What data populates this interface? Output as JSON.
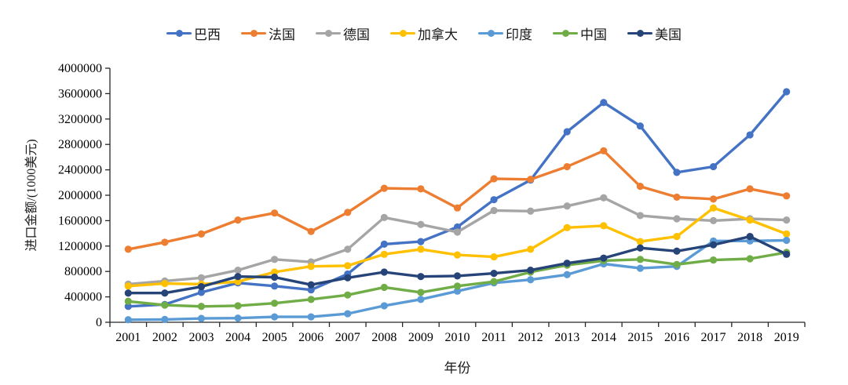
{
  "chart_data": {
    "type": "line",
    "title": "",
    "xlabel": "年份",
    "ylabel": "进口金额/(1000美元)",
    "x": [
      2001,
      2002,
      2003,
      2004,
      2005,
      2006,
      2007,
      2008,
      2009,
      2010,
      2011,
      2012,
      2013,
      2014,
      2015,
      2016,
      2017,
      2018,
      2019
    ],
    "ylim": [
      0,
      4000000
    ],
    "ytick_step": 400000,
    "y_ticks": [
      "0",
      "400000",
      "800000",
      "1200000",
      "1600000",
      "2000000",
      "2400000",
      "2800000",
      "3200000",
      "3600000",
      "4000000"
    ],
    "grid": false,
    "legend_position": "top",
    "series": [
      {
        "name": "巴西",
        "color": "#4472C4",
        "values": [
          250000,
          280000,
          470000,
          620000,
          570000,
          510000,
          760000,
          1230000,
          1270000,
          1500000,
          1930000,
          2240000,
          3000000,
          3460000,
          3090000,
          2360000,
          2450000,
          2950000,
          3630000
        ]
      },
      {
        "name": "法国",
        "color": "#ED7D31",
        "values": [
          1150000,
          1260000,
          1390000,
          1610000,
          1720000,
          1430000,
          1730000,
          2110000,
          2100000,
          1800000,
          2260000,
          2250000,
          2450000,
          2700000,
          2140000,
          1970000,
          1940000,
          2100000,
          1990000
        ]
      },
      {
        "name": "德国",
        "color": "#A5A5A5",
        "values": [
          600000,
          650000,
          700000,
          820000,
          990000,
          950000,
          1150000,
          1650000,
          1540000,
          1420000,
          1760000,
          1750000,
          1830000,
          1960000,
          1680000,
          1630000,
          1600000,
          1630000,
          1610000
        ]
      },
      {
        "name": "加拿大",
        "color": "#FFC000",
        "values": [
          570000,
          610000,
          600000,
          640000,
          790000,
          880000,
          890000,
          1070000,
          1150000,
          1060000,
          1030000,
          1150000,
          1490000,
          1520000,
          1270000,
          1350000,
          1800000,
          1610000,
          1390000
        ]
      },
      {
        "name": "印度",
        "color": "#5B9BD5",
        "values": [
          40000,
          45000,
          60000,
          65000,
          85000,
          85000,
          135000,
          260000,
          360000,
          490000,
          620000,
          670000,
          750000,
          920000,
          850000,
          880000,
          1280000,
          1280000,
          1290000
        ]
      },
      {
        "name": "中国",
        "color": "#70AD47",
        "values": [
          330000,
          270000,
          250000,
          260000,
          300000,
          360000,
          430000,
          550000,
          470000,
          570000,
          640000,
          790000,
          900000,
          970000,
          990000,
          910000,
          980000,
          1000000,
          1100000
        ]
      },
      {
        "name": "美国",
        "color": "#264478",
        "values": [
          460000,
          460000,
          560000,
          720000,
          710000,
          590000,
          700000,
          790000,
          720000,
          730000,
          770000,
          820000,
          930000,
          1010000,
          1170000,
          1120000,
          1220000,
          1350000,
          1070000
        ]
      }
    ]
  }
}
